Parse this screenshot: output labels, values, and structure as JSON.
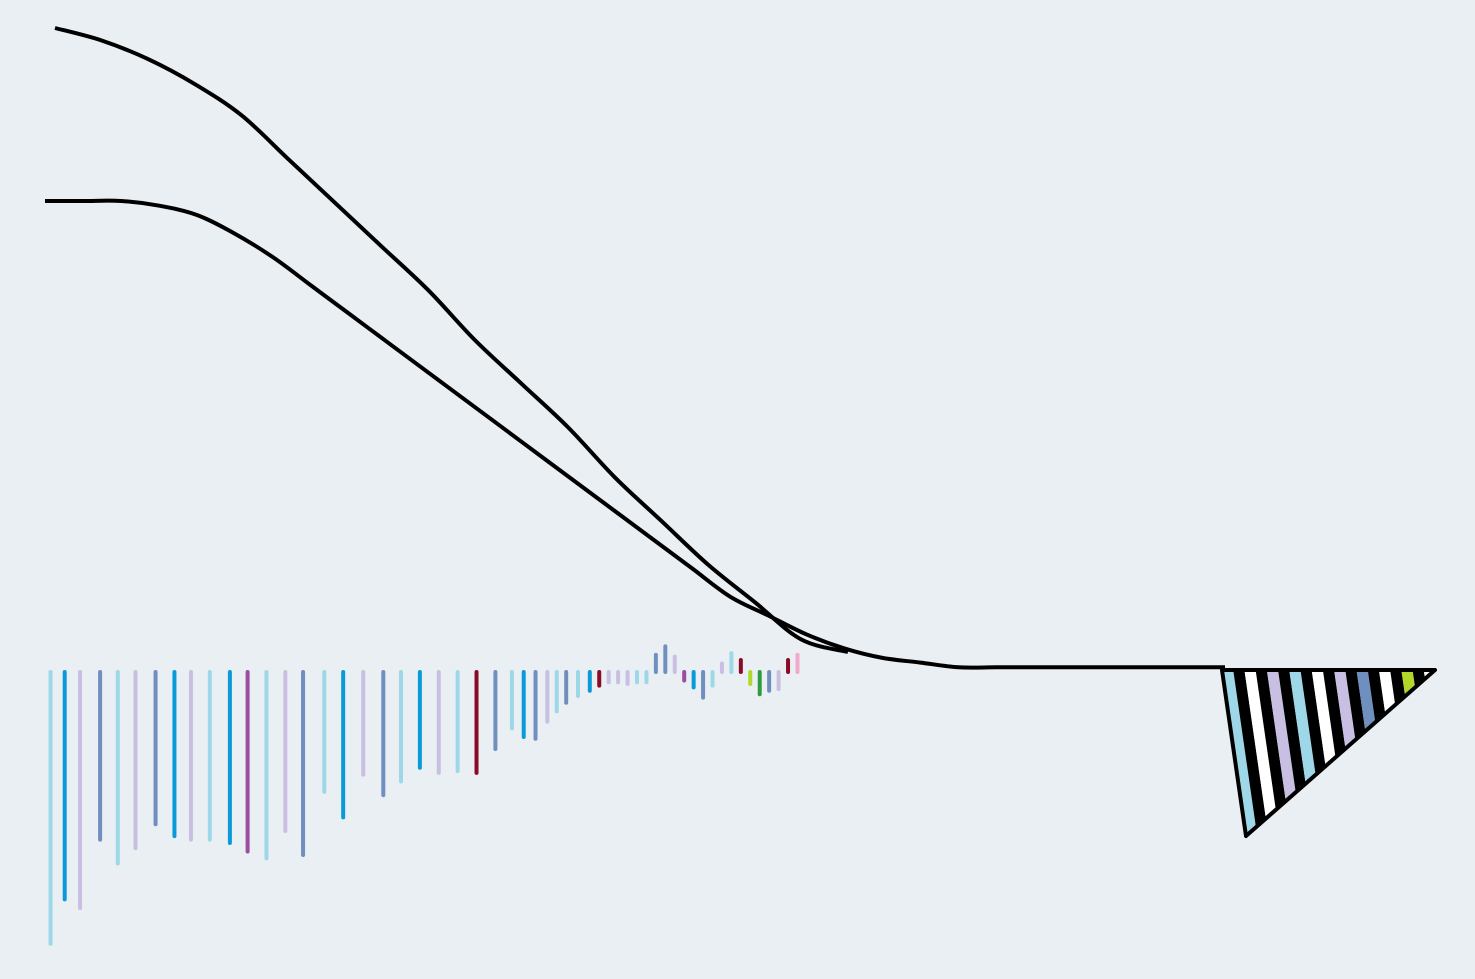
{
  "chart_data": {
    "type": "line",
    "title": "",
    "xlabel": "",
    "ylabel": "",
    "grid": false,
    "legend": "none",
    "colors": {
      "background": "#eaeff3",
      "curve": "#000000",
      "palette": [
        "#9ed8e8",
        "#0b9ad8",
        "#c8bfe3",
        "#6f8fbf",
        "#9a4ea0",
        "#8b0a25",
        "#2f9a3e",
        "#b3d829",
        "#f2a8c8",
        "#ffffff"
      ]
    },
    "series": [
      {
        "values": [
          1.0,
          0.98,
          0.95,
          0.91,
          0.86,
          0.79,
          0.72,
          0.65,
          0.58,
          0.5,
          0.43,
          0.36,
          0.28,
          0.21,
          0.14,
          0.08,
          0.02,
          0.0
        ]
      },
      {
        "values": [
          1.0,
          1.0,
          1.0,
          0.99,
          0.97,
          0.93,
          0.88,
          0.82,
          0.76,
          0.7,
          0.64,
          0.58,
          0.52,
          0.46,
          0.4,
          0.34,
          0.28,
          0.22,
          0.16,
          0.12,
          0.08,
          0.05,
          0.03,
          0.02,
          0.01,
          0.01,
          0.01,
          0.01,
          0.01,
          0.01,
          0.01,
          0.01
        ]
      }
    ],
    "stems": [
      {
        "pos": 0.003,
        "value": -1.59,
        "color": "#9ed8e8"
      },
      {
        "pos": 0.015,
        "value": -1.33,
        "color": "#0b9ad8"
      },
      {
        "pos": 0.028,
        "value": -1.38,
        "color": "#c8bfe3"
      },
      {
        "pos": 0.045,
        "value": -0.98,
        "color": "#6f8fbf"
      },
      {
        "pos": 0.06,
        "value": -1.12,
        "color": "#9ed8e8"
      },
      {
        "pos": 0.075,
        "value": -1.03,
        "color": "#c8bfe3"
      },
      {
        "pos": 0.092,
        "value": -0.89,
        "color": "#6f8fbf"
      },
      {
        "pos": 0.108,
        "value": -0.96,
        "color": "#0b9ad8"
      },
      {
        "pos": 0.122,
        "value": -0.98,
        "color": "#c8bfe3"
      },
      {
        "pos": 0.138,
        "value": -0.98,
        "color": "#9ed8e8"
      },
      {
        "pos": 0.155,
        "value": -1.0,
        "color": "#0b9ad8"
      },
      {
        "pos": 0.17,
        "value": -1.05,
        "color": "#9a4ea0"
      },
      {
        "pos": 0.186,
        "value": -1.09,
        "color": "#9ed8e8"
      },
      {
        "pos": 0.202,
        "value": -0.93,
        "color": "#c8bfe3"
      },
      {
        "pos": 0.217,
        "value": -1.07,
        "color": "#6f8fbf"
      },
      {
        "pos": 0.235,
        "value": -0.7,
        "color": "#9ed8e8"
      },
      {
        "pos": 0.251,
        "value": -0.85,
        "color": "#0b9ad8"
      },
      {
        "pos": 0.268,
        "value": -0.6,
        "color": "#c8bfe3"
      },
      {
        "pos": 0.285,
        "value": -0.72,
        "color": "#6f8fbf"
      },
      {
        "pos": 0.3,
        "value": -0.64,
        "color": "#9ed8e8"
      },
      {
        "pos": 0.316,
        "value": -0.56,
        "color": "#0b9ad8"
      },
      {
        "pos": 0.332,
        "value": -0.59,
        "color": "#c8bfe3"
      },
      {
        "pos": 0.348,
        "value": -0.58,
        "color": "#9ed8e8"
      },
      {
        "pos": 0.364,
        "value": -0.59,
        "color": "#8b0a25"
      },
      {
        "pos": 0.38,
        "value": -0.45,
        "color": "#6f8fbf"
      },
      {
        "pos": 0.394,
        "value": -0.33,
        "color": "#9ed8e8"
      },
      {
        "pos": 0.404,
        "value": -0.38,
        "color": "#0b9ad8"
      },
      {
        "pos": 0.414,
        "value": -0.39,
        "color": "#6f8fbf"
      },
      {
        "pos": 0.424,
        "value": -0.29,
        "color": "#c8bfe3"
      },
      {
        "pos": 0.432,
        "value": -0.23,
        "color": "#9ed8e8"
      },
      {
        "pos": 0.44,
        "value": -0.18,
        "color": "#6f8fbf"
      },
      {
        "pos": 0.45,
        "value": -0.14,
        "color": "#9ed8e8"
      },
      {
        "pos": 0.46,
        "value": -0.11,
        "color": "#0b9ad8"
      },
      {
        "pos": 0.468,
        "value": -0.08,
        "color": "#8b0a25"
      },
      {
        "pos": 0.476,
        "value": -0.06,
        "color": "#c8bfe3"
      },
      {
        "pos": 0.484,
        "value": -0.06,
        "color": "#c8bfe3"
      },
      {
        "pos": 0.492,
        "value": -0.07,
        "color": "#c8bfe3"
      },
      {
        "pos": 0.5,
        "value": -0.06,
        "color": "#9ed8e8"
      },
      {
        "pos": 0.508,
        "value": -0.06,
        "color": "#9ed8e8"
      },
      {
        "pos": 0.516,
        "value": 0.1,
        "color": "#6f8fbf"
      },
      {
        "pos": 0.524,
        "value": 0.15,
        "color": "#6f8fbf"
      },
      {
        "pos": 0.532,
        "value": 0.09,
        "color": "#c8bfe3"
      },
      {
        "pos": 0.54,
        "value": -0.05,
        "color": "#9a4ea0"
      },
      {
        "pos": 0.548,
        "value": -0.09,
        "color": "#0b9ad8"
      },
      {
        "pos": 0.556,
        "value": -0.15,
        "color": "#6f8fbf"
      },
      {
        "pos": 0.564,
        "value": -0.08,
        "color": "#9ed8e8"
      },
      {
        "pos": 0.572,
        "value": 0.05,
        "color": "#c8bfe3"
      },
      {
        "pos": 0.58,
        "value": 0.11,
        "color": "#9ed8e8"
      },
      {
        "pos": 0.588,
        "value": 0.07,
        "color": "#8b0a25"
      },
      {
        "pos": 0.596,
        "value": -0.07,
        "color": "#b3d829"
      },
      {
        "pos": 0.604,
        "value": -0.13,
        "color": "#2f9a3e"
      },
      {
        "pos": 0.612,
        "value": -0.11,
        "color": "#6f8fbf"
      },
      {
        "pos": 0.62,
        "value": -0.1,
        "color": "#c8bfe3"
      },
      {
        "pos": 0.628,
        "value": 0.07,
        "color": "#8b0a25"
      },
      {
        "pos": 0.636,
        "value": 0.1,
        "color": "#f2a8c8"
      }
    ],
    "wedge_bands": [
      "#9ed8e8",
      "#000000",
      "#ffffff",
      "#000000",
      "#c8bfe3",
      "#000000",
      "#9ed8e8",
      "#000000",
      "#ffffff",
      "#000000",
      "#c8bfe3",
      "#000000",
      "#6f8fbf",
      "#000000",
      "#ffffff",
      "#000000",
      "#b3d829",
      "#000000",
      "#ffffff"
    ]
  }
}
